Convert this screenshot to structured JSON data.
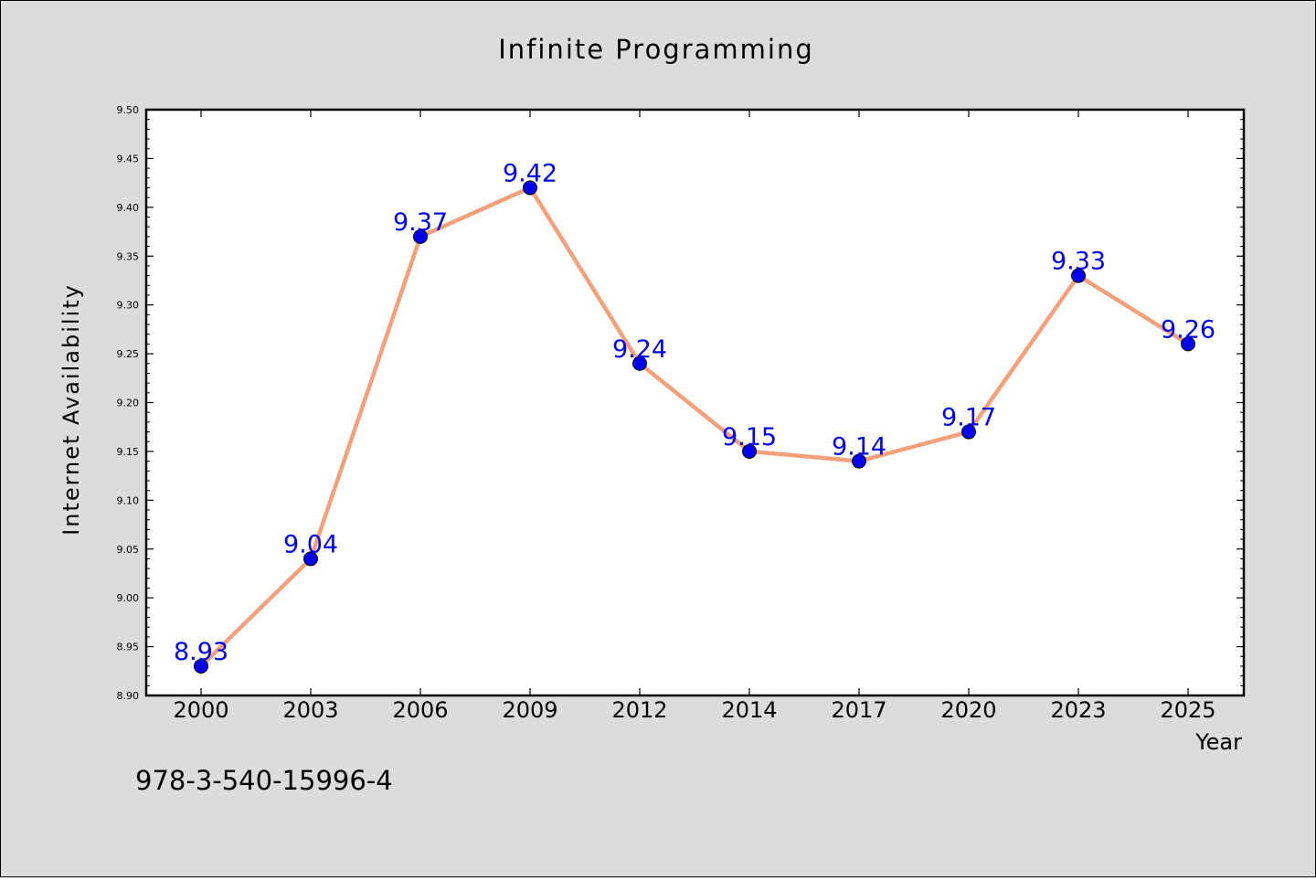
{
  "chart_data": {
    "type": "line",
    "title": "Infinite Programming",
    "xlabel": "Year",
    "ylabel": "Internet Availability",
    "categories": [
      "2000",
      "2003",
      "2006",
      "2009",
      "2012",
      "2014",
      "2017",
      "2020",
      "2023",
      "2025"
    ],
    "series": [
      {
        "values": [
          8.93,
          9.04,
          9.37,
          9.42,
          9.24,
          9.15,
          9.14,
          9.17,
          9.33,
          9.26
        ],
        "line_color": "#f4a07a",
        "marker_color": "#0000ee"
      }
    ],
    "data_labels": [
      "8.93",
      "9.04",
      "9.37",
      "9.42",
      "9.24",
      "9.15",
      "9.14",
      "9.17",
      "9.33",
      "9.26"
    ],
    "ylim": [
      8.9,
      9.5
    ],
    "y_ticks": [
      "8.90",
      "8.95",
      "9.00",
      "9.05",
      "9.10",
      "9.15",
      "9.20",
      "9.25",
      "9.30",
      "9.35",
      "9.40",
      "9.45",
      "9.50"
    ],
    "grid": false,
    "legend": "none",
    "annotation": "978-3-540-15996-4",
    "colors": {
      "background": "#dcdcdc",
      "plot_background": "#ffffff",
      "label_color": "#0000ee"
    }
  }
}
